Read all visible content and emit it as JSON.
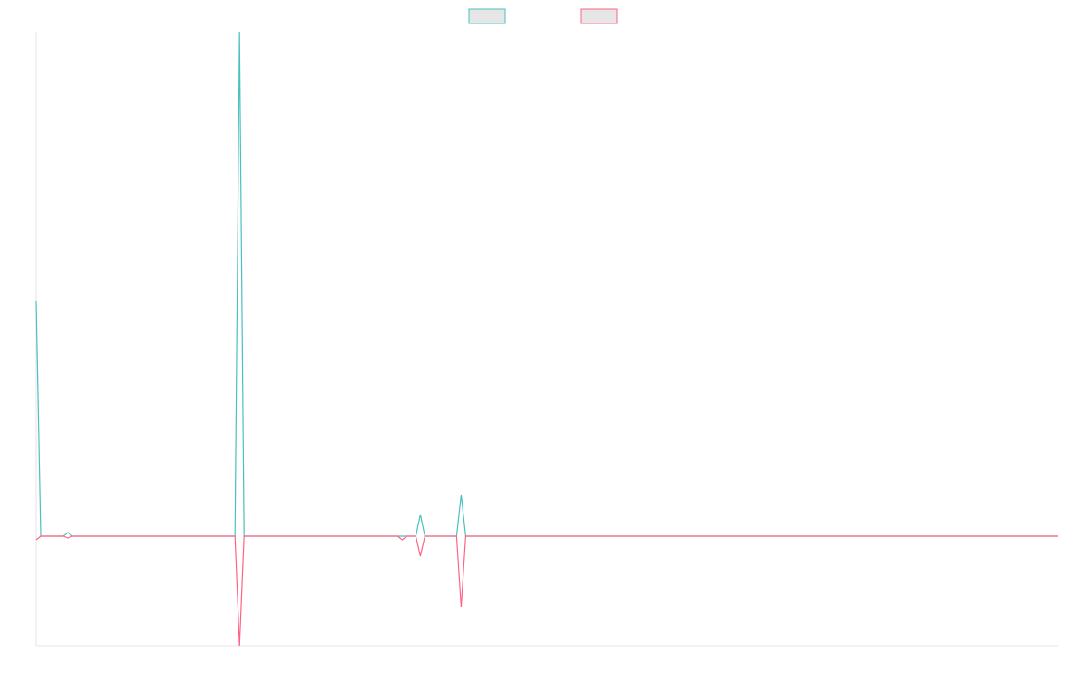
{
  "chart_data": {
    "type": "line",
    "x": [
      0,
      1,
      6,
      7,
      8,
      44,
      45,
      46,
      80,
      81,
      82,
      84,
      85,
      86,
      93,
      94,
      95,
      226
    ],
    "series": [
      {
        "color": "#4bc0c0",
        "values": [
          26.1,
          0,
          0,
          0.4,
          0,
          0,
          55.8,
          0,
          0,
          0,
          0,
          0,
          2.4,
          0,
          0,
          4.6,
          0,
          0
        ]
      },
      {
        "color": "#ff6384",
        "values": [
          -0.4,
          0,
          0,
          -0.2,
          0,
          0,
          -12.2,
          0,
          0,
          -0.4,
          0,
          0,
          -2.2,
          0,
          0,
          -7.9,
          0,
          0
        ]
      }
    ],
    "xlim": [
      0,
      226
    ],
    "ylim": [
      -12.2,
      55.8
    ],
    "grid": false,
    "legend": "top"
  }
}
